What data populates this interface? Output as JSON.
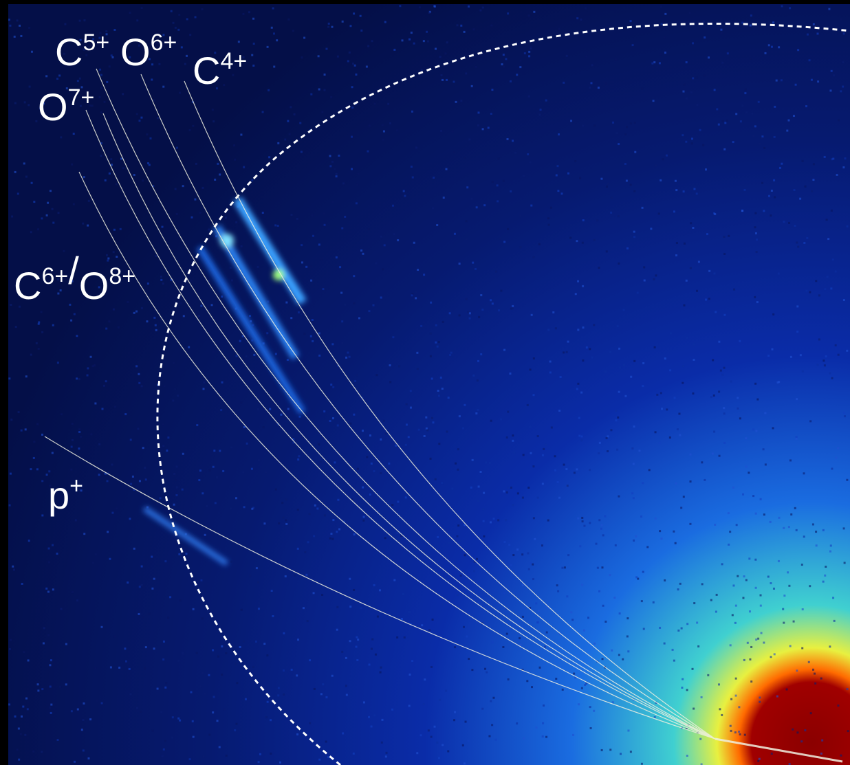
{
  "labels": [
    {
      "ions": [
        {
          "element": "C",
          "charge": "5+"
        }
      ]
    },
    {
      "ions": [
        {
          "element": "O",
          "charge": "6+"
        }
      ]
    },
    {
      "ions": [
        {
          "element": "C",
          "charge": "4+"
        }
      ]
    },
    {
      "ions": [
        {
          "element": "O",
          "charge": "7+"
        }
      ]
    },
    {
      "ions": [
        {
          "element": "C",
          "charge": "6+"
        },
        {
          "element": "O",
          "charge": "8+"
        }
      ],
      "separator": "/"
    },
    {
      "ions": [
        {
          "element": "p",
          "charge": "+"
        }
      ]
    }
  ]
}
